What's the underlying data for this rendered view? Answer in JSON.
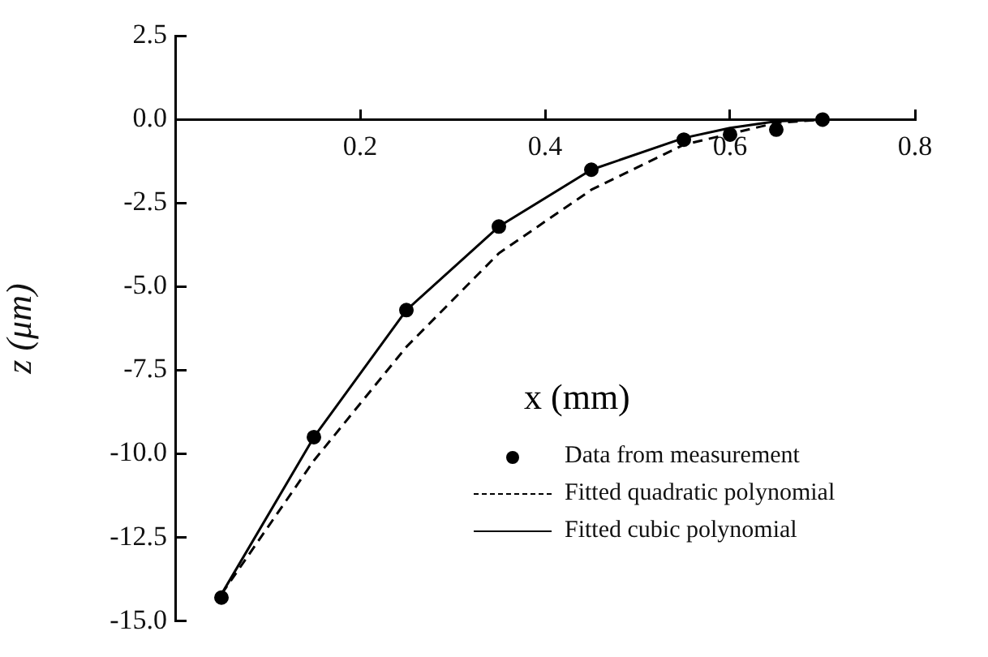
{
  "chart_data": {
    "type": "line",
    "xlabel": "x (mm)",
    "ylabel": "z (μm)",
    "xlim": [
      0,
      0.8
    ],
    "xticks": [
      0.2,
      0.4,
      0.6,
      0.8
    ],
    "ylim": [
      -15,
      2.5
    ],
    "yticks": [
      {
        "value": 2.5,
        "label": "2.5"
      },
      {
        "value": 0,
        "label": "0.0"
      },
      {
        "value": -2.5,
        "label": "-2.5"
      },
      {
        "value": -5,
        "label": "-5.0"
      },
      {
        "value": -7.5,
        "label": "-7.5"
      },
      {
        "value": -10,
        "label": "-10.0"
      },
      {
        "value": -12.5,
        "label": "-12.5"
      },
      {
        "value": -15,
        "label": "-15.0"
      }
    ],
    "grid": false,
    "legend": "bottom right",
    "series": [
      {
        "name": "Data from measurement",
        "type": "scatter",
        "marker": "circle",
        "color": "#000000",
        "x": [
          0.05,
          0.15,
          0.25,
          0.35,
          0.45,
          0.55,
          0.6,
          0.65,
          0.7
        ],
        "values": [
          -14.3,
          -9.5,
          -5.7,
          -3.2,
          -1.5,
          -0.6,
          -0.45,
          -0.3,
          0
        ]
      },
      {
        "name": "Fitted quadratic polynomial",
        "marker": "none",
        "line_style": "dashed",
        "color": "#000000",
        "x": [
          0.05,
          0.15,
          0.25,
          0.35,
          0.45,
          0.55,
          0.65,
          0.7
        ],
        "values": [
          -14.2,
          -10.2,
          -6.8,
          -4.0,
          -2.1,
          -0.75,
          -0.1,
          0
        ]
      },
      {
        "name": "Fitted cubic polynomial",
        "marker": "none",
        "line_style": "solid",
        "color": "#000000",
        "x": [
          0.05,
          0.15,
          0.25,
          0.35,
          0.45,
          0.55,
          0.6,
          0.65,
          0.7
        ],
        "values": [
          -14.2,
          -9.5,
          -5.7,
          -3.2,
          -1.5,
          -0.55,
          -0.25,
          -0.05,
          0
        ]
      }
    ]
  }
}
